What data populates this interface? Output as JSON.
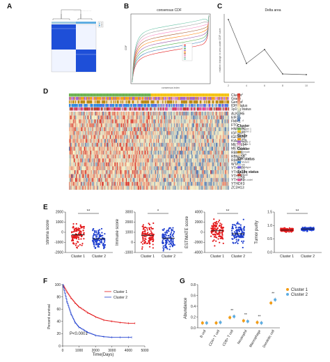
{
  "panels": {
    "a": "A",
    "b": "B",
    "c": "C",
    "d": "D",
    "e": "E",
    "f": "F",
    "g": "G"
  },
  "colors": {
    "cluster1": "#e41a1c",
    "cluster2": "#1f3fcf",
    "consensus_blue": "#1e4fd8",
    "heat_low": "#4b74b3",
    "heat_mid": "#f7f1c6",
    "heat_high": "#d73027"
  },
  "panel_a": {
    "legend": [
      "1",
      "2"
    ]
  },
  "panel_b": {
    "title": "consensus CDF"
  },
  "panel_c": {
    "title": "Delta area"
  },
  "panel_d": {
    "track_labels": [
      "Cluster",
      "Grade",
      "Gender",
      "IDH status",
      "1p19q status"
    ],
    "genes": [
      "ALKBH5",
      "EIF3A",
      "FMR1",
      "FTO",
      "HNRNPC",
      "IGF2BP2",
      "IGF2BP3",
      "KIAA1429",
      "METTL14",
      "METTL3",
      "RBM15",
      "RBM15B",
      "RBMX",
      "WTAP",
      "YTHDC1",
      "YTHDC2",
      "YTHDF1",
      "YTHDF2",
      "YTHDF3",
      "ZC3H13"
    ],
    "scale_ticks": [
      "4",
      "2",
      "0",
      "-2",
      "-4"
    ],
    "legend_groups": [
      {
        "title": "Cluster",
        "items": [
          "Cluster 1",
          "Cluster 2"
        ],
        "colors": [
          "#6ab04c",
          "#f4c20d"
        ]
      },
      {
        "title": "Grade",
        "items": [
          "G4",
          "Grade 2",
          "Grade 3"
        ],
        "colors": [
          "#f39c12",
          "#a05fc7",
          "#e8a0c8"
        ]
      },
      {
        "title": "Gender",
        "items": [
          "Female",
          "Male"
        ],
        "colors": [
          "#b8860b",
          "#f5deb3"
        ]
      },
      {
        "title": "IDH status",
        "items": [
          "Mutant",
          "NA",
          "Wildtype"
        ],
        "colors": [
          "#2e86de",
          "#cccccc",
          "#6c5ce7"
        ]
      },
      {
        "title": "1p19q status",
        "items": [
          "Codel",
          "NA",
          "Non-codel"
        ],
        "colors": [
          "#c0392b",
          "#cccccc",
          "#e84393"
        ]
      }
    ]
  },
  "panel_e": {
    "plots": [
      {
        "ylabel": "Stroma score",
        "sig": "**",
        "yticks": [
          "2000",
          "1000",
          "0",
          "-1000",
          "-2000"
        ]
      },
      {
        "ylabel": "Immune score",
        "sig": "*",
        "yticks": [
          "3000",
          "2000",
          "1000",
          "0",
          "-1000"
        ]
      },
      {
        "ylabel": "ESTIMATE score",
        "sig": "**",
        "yticks": [
          "4000",
          "2000",
          "0",
          "-2000",
          "-4000"
        ]
      },
      {
        "ylabel": "Tumor purity",
        "sig": "**",
        "yticks": [
          "1.5",
          "1.0",
          "0.5",
          "0.0"
        ]
      }
    ],
    "xcats": [
      "Cluster 1",
      "Cluster 2"
    ]
  },
  "panel_f": {
    "ylabel": "Percent survival",
    "xlabel": "Time(Days)",
    "legend": [
      "Cluster 1",
      "Cluster 2"
    ],
    "pvalue": "P<0.0001",
    "yticks": [
      "100",
      "80",
      "60",
      "40",
      "20",
      "0"
    ],
    "xticks": [
      "0",
      "1000",
      "2000",
      "3000",
      "4000",
      "5000"
    ]
  },
  "panel_g": {
    "ylabel": "Abundance",
    "legend": [
      "Cluster 1",
      "Cluster 2"
    ],
    "yticks": [
      "0.8",
      "0.6",
      "0.4",
      "0.2",
      "0.0"
    ]
  },
  "chart_data": [
    {
      "type": "scatter",
      "panel": "E",
      "title": "",
      "categories": [
        "Cluster 1",
        "Cluster 2"
      ],
      "series": [
        {
          "ylabel": "Stroma score",
          "medians": [
            -250,
            -650
          ],
          "ylim": [
            -2000,
            2000
          ]
        },
        {
          "ylabel": "Immune score",
          "medians": [
            700,
            400
          ],
          "ylim": [
            -1000,
            3000
          ]
        },
        {
          "ylabel": "ESTIMATE score",
          "medians": [
            300,
            -300
          ],
          "ylim": [
            -4000,
            4000
          ]
        },
        {
          "ylabel": "Tumor purity",
          "medians": [
            0.83,
            0.87
          ],
          "ylim": [
            0.0,
            1.5
          ]
        }
      ]
    },
    {
      "type": "line",
      "panel": "F",
      "xlabel": "Time(Days)",
      "ylabel": "Percent survival",
      "xlim": [
        0,
        5000
      ],
      "ylim": [
        0,
        100
      ],
      "series": [
        {
          "name": "Cluster 1",
          "x": [
            0,
            250,
            500,
            750,
            1000,
            1500,
            2000,
            2500,
            3000,
            3500,
            4000,
            4400
          ],
          "y": [
            100,
            88,
            78,
            70,
            63,
            54,
            47,
            42,
            40,
            38,
            37,
            37
          ]
        },
        {
          "name": "Cluster 2",
          "x": [
            0,
            250,
            500,
            750,
            1000,
            1500,
            2000,
            2500,
            3000,
            3500,
            4000,
            4200
          ],
          "y": [
            100,
            72,
            52,
            38,
            30,
            22,
            17,
            15,
            14,
            14,
            14,
            14
          ]
        }
      ]
    },
    {
      "type": "scatter",
      "panel": "G",
      "ylabel": "Abundance",
      "ylim": [
        0.0,
        0.8
      ],
      "categories": [
        "B cell",
        "CD4+ T cell",
        "CD8+ T cell",
        "Neutrophil",
        "Macrophage",
        "Dendritic cell"
      ],
      "sig": [
        "",
        "",
        "**",
        "**",
        "**",
        "**"
      ],
      "series": [
        {
          "name": "Cluster 1",
          "values": [
            0.09,
            0.09,
            0.19,
            0.13,
            0.1,
            0.46
          ]
        },
        {
          "name": "Cluster 2",
          "values": [
            0.09,
            0.1,
            0.21,
            0.12,
            0.09,
            0.52
          ]
        }
      ]
    }
  ]
}
